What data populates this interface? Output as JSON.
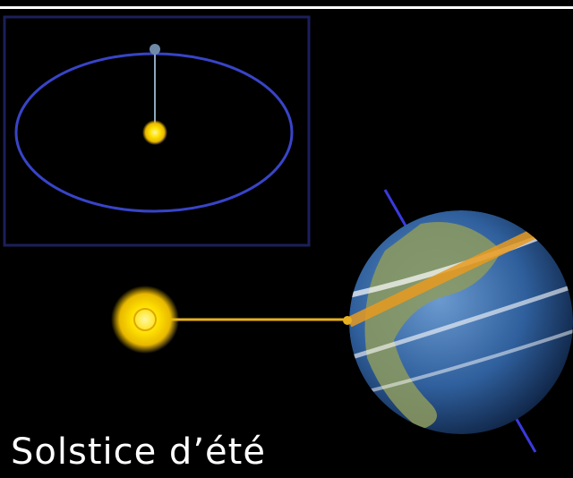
{
  "caption": "Solstice d’été"
}
